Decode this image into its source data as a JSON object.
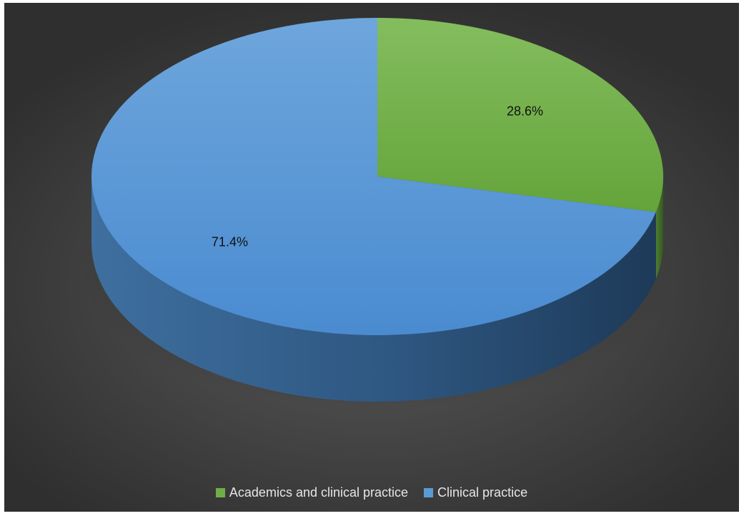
{
  "chart_data": {
    "type": "pie",
    "style": "3d",
    "title": "",
    "legend_position": "bottom",
    "series": [
      {
        "categories": [
          "Academics and clinical practice",
          "Clinical practice"
        ],
        "values": [
          28.6,
          71.4
        ],
        "labels": [
          "28.6%",
          "71.4%"
        ],
        "colors": [
          "#70ad47",
          "#5b9bd5"
        ]
      }
    ]
  }
}
